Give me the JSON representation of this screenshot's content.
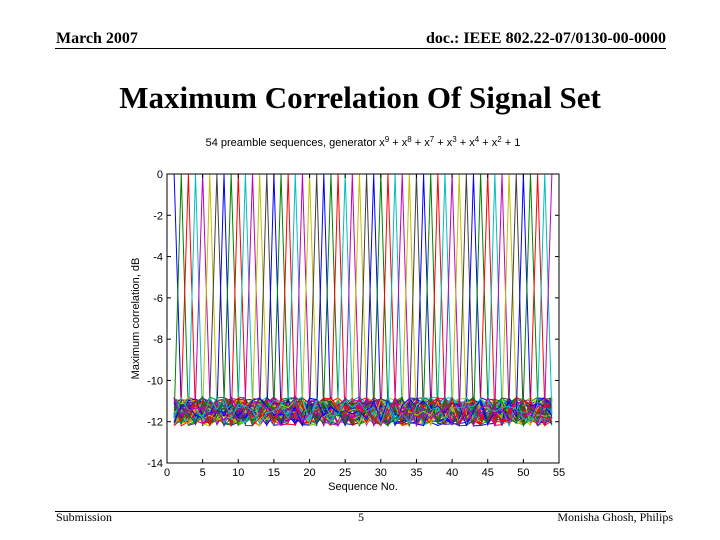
{
  "header": {
    "date": "March 2007",
    "doc": "doc.: IEEE 802.22-07/0130-00-0000"
  },
  "slide": {
    "title": "Maximum Correlation Of Signal Set"
  },
  "footer": {
    "left": "Submission",
    "page": "5",
    "right": "Monisha Ghosh, Philips"
  },
  "chart_data": {
    "type": "line",
    "title_parts": [
      {
        "t": "54 preamble sequences, generator x",
        "sup": false
      },
      {
        "t": "9",
        "sup": true
      },
      {
        "t": " + x",
        "sup": false
      },
      {
        "t": "8",
        "sup": true
      },
      {
        "t": " + x",
        "sup": false
      },
      {
        "t": "7",
        "sup": true
      },
      {
        "t": " + x",
        "sup": false
      },
      {
        "t": "3",
        "sup": true
      },
      {
        "t": " + x",
        "sup": false
      },
      {
        "t": "4",
        "sup": true
      },
      {
        "t": " + x",
        "sup": false
      },
      {
        "t": "2",
        "sup": true
      },
      {
        "t": " + 1",
        "sup": false
      }
    ],
    "xlabel": "Sequence No.",
    "ylabel": "Maximum correlation, dB",
    "xlim": [
      0,
      55
    ],
    "ylim": [
      -14,
      0
    ],
    "xticks": [
      0,
      5,
      10,
      15,
      20,
      25,
      30,
      35,
      40,
      45,
      50,
      55
    ],
    "yticks": [
      0,
      -2,
      -4,
      -6,
      -8,
      -10,
      -12,
      -14
    ],
    "num_series": 54,
    "series_peak_db": 0,
    "off_peak_range_db": [
      -12.2,
      -10.8
    ],
    "grid": false,
    "colors": [
      "#0000ff",
      "#008000",
      "#ff0000",
      "#00bfbf",
      "#bf00bf",
      "#bfbf00",
      "#404040"
    ]
  }
}
